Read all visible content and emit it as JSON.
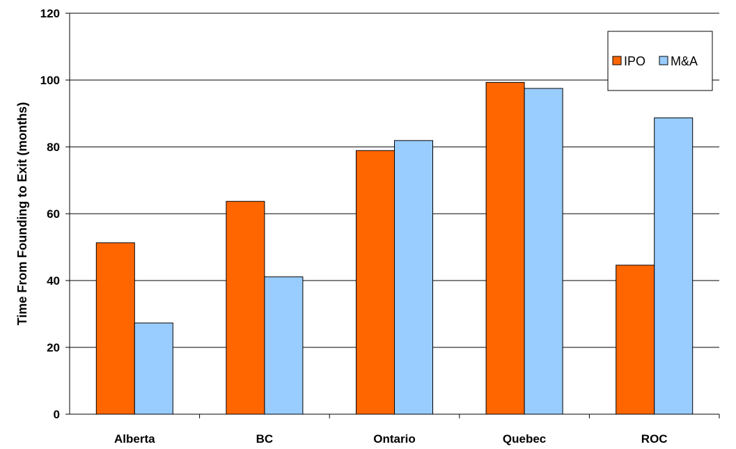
{
  "chart_data": {
    "type": "bar",
    "title": "",
    "xlabel": "",
    "ylabel": "Time From Founding to Exit (months)",
    "ylim": [
      0,
      120
    ],
    "yticks": [
      0,
      20,
      40,
      60,
      80,
      100,
      120
    ],
    "grid": true,
    "legend_position": "top-right",
    "categories": [
      "Alberta",
      "BC",
      "Ontario",
      "Quebec",
      "ROC"
    ],
    "series": [
      {
        "name": "IPO",
        "color": "#FF6600",
        "values": [
          51.3,
          63.7,
          78.9,
          99.3,
          44.6
        ]
      },
      {
        "name": "M&A",
        "color": "#99CCFF",
        "values": [
          27.3,
          41.1,
          81.9,
          97.5,
          88.7
        ]
      }
    ]
  }
}
